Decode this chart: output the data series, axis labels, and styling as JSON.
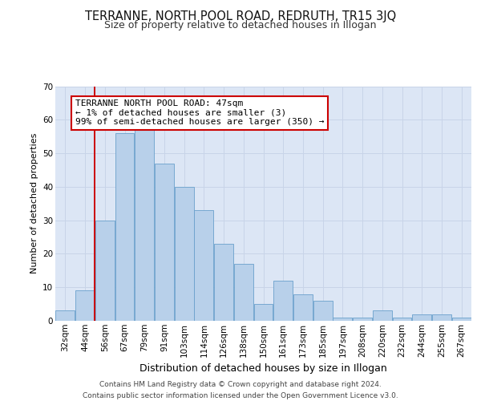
{
  "title": "TERRANNE, NORTH POOL ROAD, REDRUTH, TR15 3JQ",
  "subtitle": "Size of property relative to detached houses in Illogan",
  "xlabel": "Distribution of detached houses by size in Illogan",
  "ylabel": "Number of detached properties",
  "categories": [
    "32sqm",
    "44sqm",
    "56sqm",
    "67sqm",
    "79sqm",
    "91sqm",
    "103sqm",
    "114sqm",
    "126sqm",
    "138sqm",
    "150sqm",
    "161sqm",
    "173sqm",
    "185sqm",
    "197sqm",
    "208sqm",
    "220sqm",
    "232sqm",
    "244sqm",
    "255sqm",
    "267sqm"
  ],
  "values": [
    3,
    9,
    30,
    56,
    57,
    47,
    40,
    33,
    23,
    17,
    5,
    12,
    8,
    6,
    1,
    1,
    3,
    1,
    2,
    2,
    1
  ],
  "bar_color": "#b8d0ea",
  "bar_edge_color": "#6aa0cc",
  "vline_color": "#cc0000",
  "vline_xindex": 1,
  "ylim": [
    0,
    70
  ],
  "yticks": [
    0,
    10,
    20,
    30,
    40,
    50,
    60,
    70
  ],
  "grid_color": "#c8d4e8",
  "bg_color": "#dce6f5",
  "annotation_text": "TERRANNE NORTH POOL ROAD: 47sqm\n← 1% of detached houses are smaller (3)\n99% of semi-detached houses are larger (350) →",
  "annotation_box_color": "#ffffff",
  "annotation_box_edge": "#cc0000",
  "footer_line1": "Contains HM Land Registry data © Crown copyright and database right 2024.",
  "footer_line2": "Contains public sector information licensed under the Open Government Licence v3.0.",
  "title_fontsize": 10.5,
  "subtitle_fontsize": 9,
  "ylabel_fontsize": 8,
  "xlabel_fontsize": 9,
  "tick_fontsize": 7.5,
  "footer_fontsize": 6.5,
  "annot_fontsize": 8
}
